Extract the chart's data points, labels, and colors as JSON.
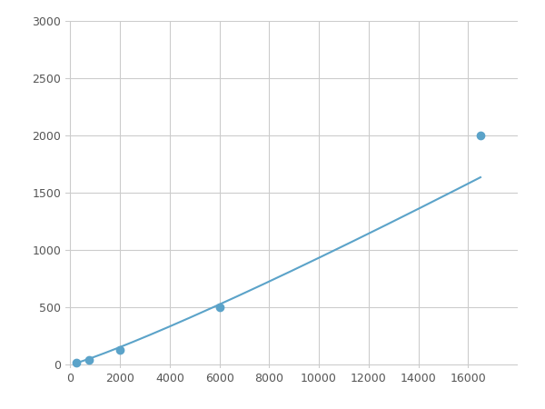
{
  "x_points": [
    250,
    750,
    2000,
    6000,
    16500
  ],
  "y_points": [
    20,
    40,
    125,
    500,
    2000
  ],
  "line_color": "#5BA3C9",
  "marker_color": "#5BA3C9",
  "marker_size": 6,
  "xlim": [
    -200,
    18000
  ],
  "ylim": [
    -30,
    3000
  ],
  "xticks": [
    0,
    2000,
    4000,
    6000,
    8000,
    10000,
    12000,
    14000,
    16000
  ],
  "yticks": [
    0,
    500,
    1000,
    1500,
    2000,
    2500,
    3000
  ],
  "grid_color": "#CCCCCC",
  "background_color": "#FFFFFF",
  "fig_background_color": "#FFFFFF",
  "linewidth": 1.5,
  "figsize": [
    6.0,
    4.5
  ],
  "dpi": 100
}
